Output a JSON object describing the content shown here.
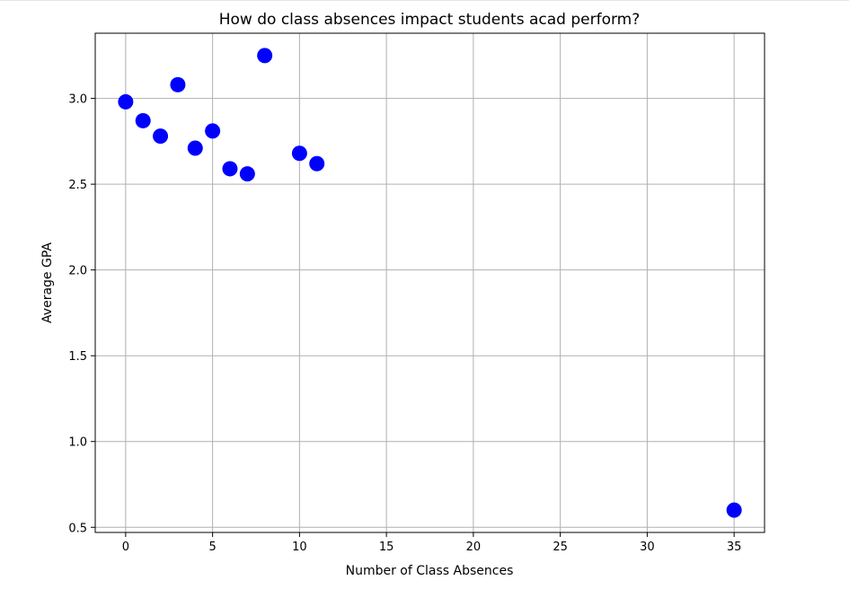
{
  "chart_data": {
    "type": "scatter",
    "title": "How do class absences impact students acad perform?",
    "xlabel": "Number of Class Absences",
    "ylabel": "Average GPA",
    "xlim": [
      -1.75,
      36.75
    ],
    "ylim": [
      0.47,
      3.38
    ],
    "xticks": [
      0,
      5,
      10,
      15,
      20,
      25,
      30,
      35
    ],
    "yticks": [
      0.5,
      1.0,
      1.5,
      2.0,
      2.5,
      3.0
    ],
    "xtick_labels": [
      "0",
      "5",
      "10",
      "15",
      "20",
      "25",
      "30",
      "35"
    ],
    "ytick_labels": [
      "0.5",
      "1.0",
      "1.5",
      "2.0",
      "2.5",
      "3.0"
    ],
    "grid": true,
    "marker_color": "#0000ff",
    "points": [
      {
        "x": 0,
        "y": 2.98
      },
      {
        "x": 1,
        "y": 2.87
      },
      {
        "x": 2,
        "y": 2.78
      },
      {
        "x": 3,
        "y": 3.08
      },
      {
        "x": 4,
        "y": 2.71
      },
      {
        "x": 5,
        "y": 2.81
      },
      {
        "x": 6,
        "y": 2.59
      },
      {
        "x": 7,
        "y": 2.56
      },
      {
        "x": 8,
        "y": 3.25
      },
      {
        "x": 10,
        "y": 2.68
      },
      {
        "x": 11,
        "y": 2.62
      },
      {
        "x": 35,
        "y": 0.6
      }
    ]
  }
}
